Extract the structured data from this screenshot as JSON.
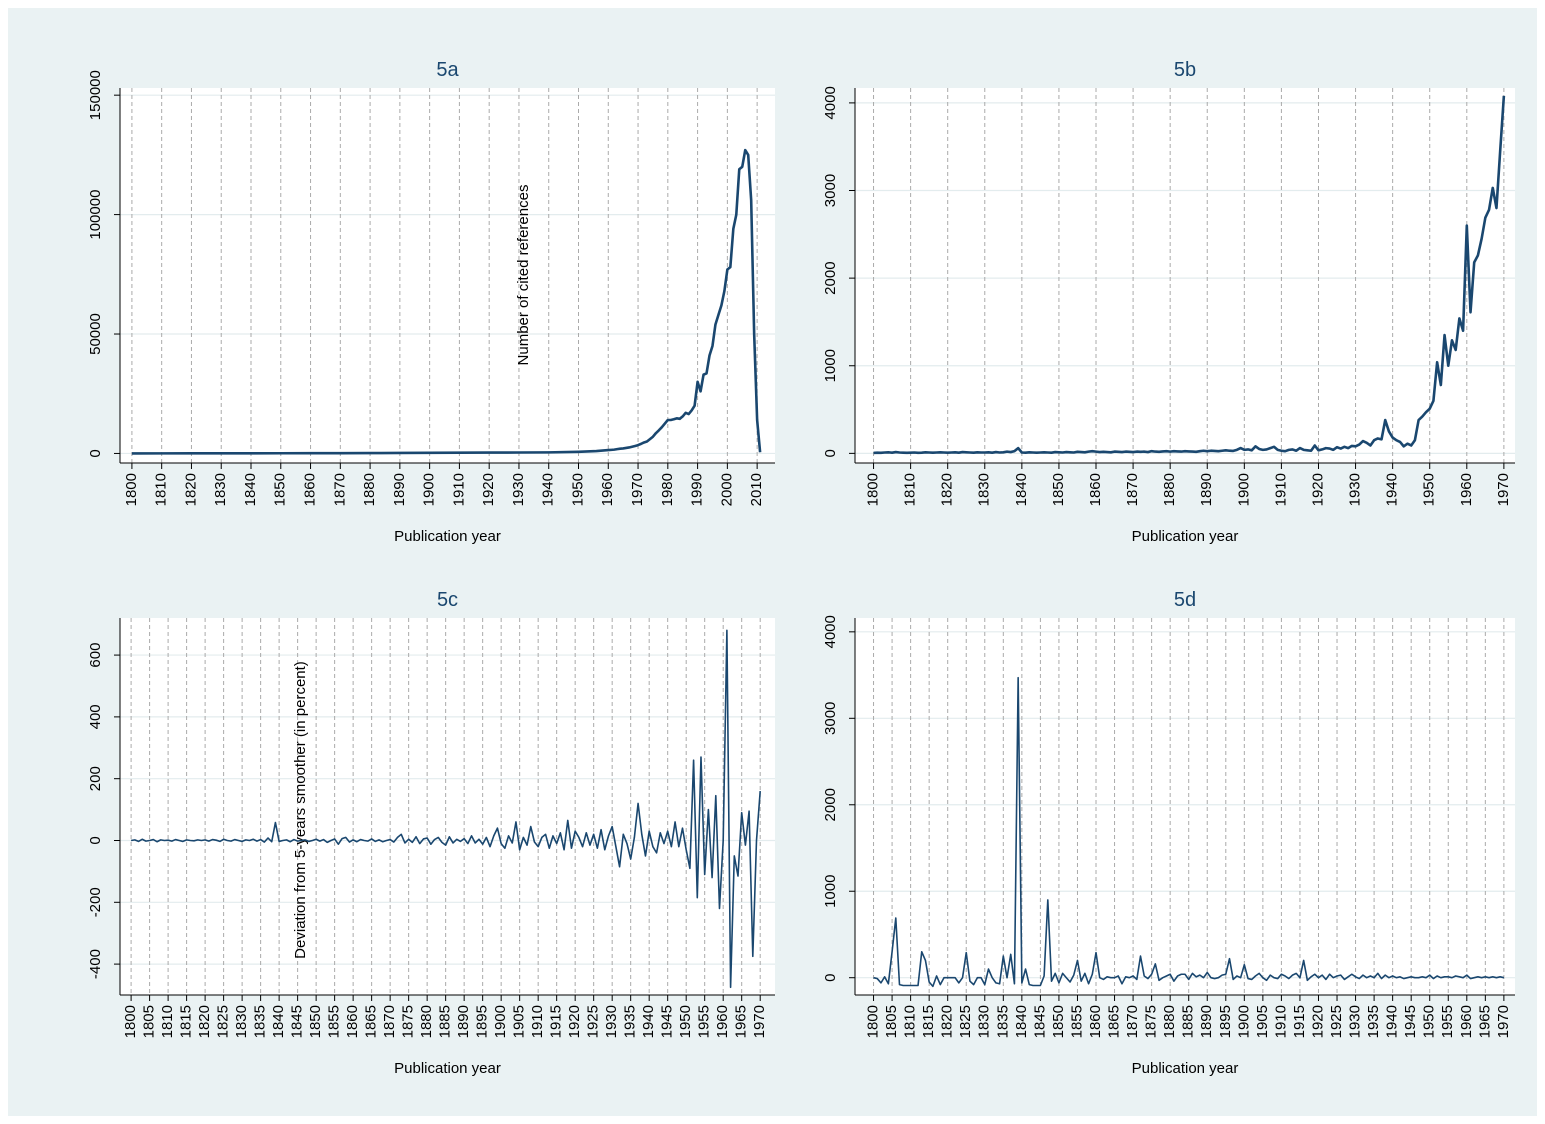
{
  "chart_data": [
    {
      "type": "line",
      "title": "5a",
      "x_label": "Publication year",
      "y_label": "Number of cited references",
      "x": [
        1800,
        1810,
        1820,
        1830,
        1840,
        1850,
        1860,
        1870,
        1880,
        1890,
        1900,
        1910,
        1920,
        1930,
        1940,
        1950,
        1951,
        1952,
        1953,
        1954,
        1955,
        1956,
        1957,
        1958,
        1959,
        1960,
        1961,
        1962,
        1963,
        1964,
        1965,
        1966,
        1967,
        1968,
        1969,
        1970,
        1971,
        1972,
        1973,
        1974,
        1975,
        1976,
        1977,
        1978,
        1979,
        1980,
        1981,
        1982,
        1983,
        1984,
        1985,
        1986,
        1987,
        1988,
        1989,
        1990,
        1991,
        1992,
        1993,
        1994,
        1995,
        1996,
        1997,
        1998,
        1999,
        2000,
        2001,
        2002,
        2003,
        2004,
        2005,
        2006,
        2007,
        2008,
        2009,
        2010,
        2011
      ],
      "values": [
        20,
        30,
        40,
        50,
        60,
        80,
        100,
        120,
        150,
        200,
        250,
        300,
        350,
        400,
        450,
        700,
        750,
        800,
        850,
        900,
        950,
        1000,
        1100,
        1200,
        1300,
        1400,
        1500,
        1600,
        1800,
        2000,
        2100,
        2300,
        2500,
        2800,
        3100,
        3500,
        4000,
        4600,
        5000,
        6000,
        7000,
        8500,
        9700,
        11000,
        12500,
        14000,
        14000,
        14300,
        14700,
        14500,
        15500,
        17000,
        16500,
        18000,
        20000,
        30000,
        26000,
        33000,
        33500,
        41000,
        45000,
        54000,
        58000,
        62000,
        68000,
        77000,
        78000,
        94000,
        100000,
        119000,
        120000,
        127000,
        125000,
        106000,
        50000,
        14000,
        500
      ],
      "color": "#1a476f",
      "xlim": [
        1796,
        2016
      ],
      "ylim": [
        -4000,
        153000
      ],
      "xticks": [
        1800,
        1810,
        1820,
        1830,
        1840,
        1850,
        1860,
        1870,
        1880,
        1890,
        1900,
        1910,
        1920,
        1930,
        1940,
        1950,
        1960,
        1970,
        1980,
        1990,
        2000,
        2010
      ],
      "yticks": [
        0,
        50000,
        100000,
        150000
      ],
      "grid": true
    },
    {
      "type": "line",
      "title": "5b",
      "x_label": "Publication year",
      "x": [
        1800,
        1801,
        1802,
        1803,
        1804,
        1805,
        1806,
        1807,
        1808,
        1809,
        1810,
        1811,
        1812,
        1813,
        1814,
        1815,
        1816,
        1817,
        1818,
        1819,
        1820,
        1821,
        1822,
        1823,
        1824,
        1825,
        1826,
        1827,
        1828,
        1829,
        1830,
        1831,
        1832,
        1833,
        1834,
        1835,
        1836,
        1837,
        1838,
        1839,
        1840,
        1841,
        1842,
        1843,
        1844,
        1845,
        1846,
        1847,
        1848,
        1849,
        1850,
        1851,
        1852,
        1853,
        1854,
        1855,
        1856,
        1857,
        1858,
        1859,
        1860,
        1861,
        1862,
        1863,
        1864,
        1865,
        1866,
        1867,
        1868,
        1869,
        1870,
        1871,
        1872,
        1873,
        1874,
        1875,
        1876,
        1877,
        1878,
        1879,
        1880,
        1881,
        1882,
        1883,
        1884,
        1885,
        1886,
        1887,
        1888,
        1889,
        1890,
        1891,
        1892,
        1893,
        1894,
        1895,
        1896,
        1897,
        1898,
        1899,
        1900,
        1901,
        1902,
        1903,
        1904,
        1905,
        1906,
        1907,
        1908,
        1909,
        1910,
        1911,
        1912,
        1913,
        1914,
        1915,
        1916,
        1917,
        1918,
        1919,
        1920,
        1921,
        1922,
        1923,
        1924,
        1925,
        1926,
        1927,
        1928,
        1929,
        1930,
        1931,
        1932,
        1933,
        1934,
        1935,
        1936,
        1937,
        1938,
        1939,
        1940,
        1941,
        1942,
        1943,
        1944,
        1945,
        1946,
        1947,
        1948,
        1949,
        1950,
        1951,
        1952,
        1953,
        1954,
        1955,
        1956,
        1957,
        1958,
        1959,
        1960,
        1961,
        1962,
        1963,
        1964,
        1965,
        1966,
        1967,
        1968,
        1969,
        1970
      ],
      "values": [
        5,
        8,
        6,
        10,
        12,
        8,
        15,
        10,
        8,
        6,
        8,
        10,
        6,
        8,
        12,
        10,
        8,
        10,
        12,
        10,
        8,
        10,
        12,
        8,
        15,
        12,
        10,
        8,
        12,
        10,
        10,
        12,
        8,
        15,
        10,
        12,
        20,
        15,
        25,
        60,
        10,
        8,
        12,
        10,
        8,
        10,
        12,
        10,
        8,
        15,
        12,
        10,
        15,
        12,
        10,
        18,
        15,
        12,
        20,
        25,
        20,
        15,
        18,
        15,
        12,
        20,
        18,
        15,
        20,
        18,
        15,
        20,
        18,
        20,
        15,
        25,
        20,
        18,
        22,
        25,
        20,
        25,
        22,
        20,
        25,
        22,
        20,
        18,
        25,
        30,
        25,
        30,
        28,
        25,
        30,
        35,
        30,
        28,
        40,
        60,
        40,
        45,
        35,
        80,
        50,
        40,
        45,
        60,
        75,
        40,
        30,
        25,
        40,
        45,
        30,
        60,
        40,
        35,
        30,
        90,
        35,
        45,
        60,
        55,
        40,
        70,
        55,
        75,
        60,
        85,
        80,
        100,
        140,
        120,
        90,
        150,
        170,
        160,
        380,
        250,
        180,
        150,
        130,
        80,
        110,
        90,
        150,
        380,
        420,
        470,
        510,
        600,
        1040,
        780,
        1350,
        1000,
        1290,
        1180,
        1540,
        1400,
        2600,
        1610,
        2180,
        2260,
        2450,
        2690,
        2780,
        3030,
        2800,
        3450,
        4080
      ],
      "color": "#1a476f",
      "xlim": [
        1795,
        1973
      ],
      "ylim": [
        -110,
        4170
      ],
      "xticks": [
        1800,
        1810,
        1820,
        1830,
        1840,
        1850,
        1860,
        1870,
        1880,
        1890,
        1900,
        1910,
        1920,
        1930,
        1940,
        1950,
        1960,
        1970
      ],
      "yticks": [
        0,
        1000,
        2000,
        3000,
        4000
      ],
      "grid": true
    },
    {
      "type": "line",
      "title": "5c",
      "x_label": "Publication year",
      "y_label": "Deviation from 5-years smoother (in percent)",
      "x": [
        1800,
        1801,
        1802,
        1803,
        1804,
        1805,
        1806,
        1807,
        1808,
        1809,
        1810,
        1811,
        1812,
        1813,
        1814,
        1815,
        1816,
        1817,
        1818,
        1819,
        1820,
        1821,
        1822,
        1823,
        1824,
        1825,
        1826,
        1827,
        1828,
        1829,
        1830,
        1831,
        1832,
        1833,
        1834,
        1835,
        1836,
        1837,
        1838,
        1839,
        1840,
        1841,
        1842,
        1843,
        1844,
        1845,
        1846,
        1847,
        1848,
        1849,
        1850,
        1851,
        1852,
        1853,
        1854,
        1855,
        1856,
        1857,
        1858,
        1859,
        1860,
        1861,
        1862,
        1863,
        1864,
        1865,
        1866,
        1867,
        1868,
        1869,
        1870,
        1871,
        1872,
        1873,
        1874,
        1875,
        1876,
        1877,
        1878,
        1879,
        1880,
        1881,
        1882,
        1883,
        1884,
        1885,
        1886,
        1887,
        1888,
        1889,
        1890,
        1891,
        1892,
        1893,
        1894,
        1895,
        1896,
        1897,
        1898,
        1899,
        1900,
        1901,
        1902,
        1903,
        1904,
        1905,
        1906,
        1907,
        1908,
        1909,
        1910,
        1911,
        1912,
        1913,
        1914,
        1915,
        1916,
        1917,
        1918,
        1919,
        1920,
        1921,
        1922,
        1923,
        1924,
        1925,
        1926,
        1927,
        1928,
        1929,
        1930,
        1931,
        1932,
        1933,
        1934,
        1935,
        1936,
        1937,
        1938,
        1939,
        1940,
        1941,
        1942,
        1943,
        1944,
        1945,
        1946,
        1947,
        1948,
        1949,
        1950,
        1951,
        1952,
        1953,
        1954,
        1955,
        1956,
        1957,
        1958,
        1959,
        1960,
        1961,
        1962,
        1963,
        1964,
        1965,
        1966,
        1967,
        1968,
        1969,
        1970
      ],
      "values": [
        0,
        2,
        -3,
        4,
        -2,
        0,
        3,
        -4,
        2,
        0,
        1,
        -2,
        3,
        0,
        -3,
        2,
        0,
        -1,
        2,
        0,
        2,
        -2,
        3,
        1,
        -3,
        4,
        0,
        -2,
        3,
        0,
        -3,
        2,
        0,
        4,
        -2,
        3,
        -5,
        8,
        -4,
        58,
        -3,
        0,
        2,
        -4,
        3,
        -2,
        0,
        2,
        -3,
        0,
        4,
        -2,
        3,
        -6,
        0,
        5,
        -12,
        6,
        10,
        -5,
        2,
        -4,
        3,
        0,
        -2,
        5,
        -3,
        2,
        -4,
        0,
        3,
        -5,
        10,
        20,
        -8,
        4,
        -6,
        12,
        -10,
        5,
        8,
        -12,
        3,
        10,
        -6,
        -15,
        12,
        -8,
        4,
        -3,
        6,
        -10,
        15,
        -8,
        4,
        -12,
        10,
        -20,
        15,
        40,
        -10,
        -25,
        15,
        -8,
        60,
        -30,
        10,
        -15,
        45,
        -5,
        -20,
        10,
        20,
        -25,
        15,
        -10,
        25,
        -30,
        65,
        -25,
        30,
        10,
        -20,
        25,
        -15,
        20,
        -25,
        35,
        -30,
        15,
        45,
        -20,
        -85,
        20,
        -10,
        -60,
        10,
        120,
        20,
        -50,
        30,
        -20,
        -40,
        25,
        -10,
        30,
        -20,
        60,
        -20,
        40,
        -30,
        -90,
        260,
        -185,
        270,
        -110,
        100,
        -120,
        145,
        -220,
        0,
        680,
        -475,
        -50,
        -115,
        90,
        -15,
        95,
        -375,
        0,
        160
      ],
      "color": "#1a476f",
      "xlim": [
        1797,
        1974
      ],
      "ylim": [
        -500,
        720
      ],
      "xticks": [
        1800,
        1805,
        1810,
        1815,
        1820,
        1825,
        1830,
        1835,
        1840,
        1845,
        1850,
        1855,
        1860,
        1865,
        1870,
        1875,
        1880,
        1885,
        1890,
        1895,
        1900,
        1905,
        1910,
        1915,
        1920,
        1925,
        1930,
        1935,
        1940,
        1945,
        1950,
        1955,
        1960,
        1965,
        1970
      ],
      "yticks": [
        -400,
        -200,
        0,
        200,
        400,
        600
      ],
      "grid": true
    },
    {
      "type": "line",
      "title": "5d",
      "x_label": "Publication year",
      "x": [
        1800,
        1801,
        1802,
        1803,
        1804,
        1805,
        1806,
        1807,
        1808,
        1809,
        1810,
        1811,
        1812,
        1813,
        1814,
        1815,
        1816,
        1817,
        1818,
        1819,
        1820,
        1821,
        1822,
        1823,
        1824,
        1825,
        1826,
        1827,
        1828,
        1829,
        1830,
        1831,
        1832,
        1833,
        1834,
        1835,
        1836,
        1837,
        1838,
        1839,
        1840,
        1841,
        1842,
        1843,
        1844,
        1845,
        1846,
        1847,
        1848,
        1849,
        1850,
        1851,
        1852,
        1853,
        1854,
        1855,
        1856,
        1857,
        1858,
        1859,
        1860,
        1861,
        1862,
        1863,
        1864,
        1865,
        1866,
        1867,
        1868,
        1869,
        1870,
        1871,
        1872,
        1873,
        1874,
        1875,
        1876,
        1877,
        1878,
        1879,
        1880,
        1881,
        1882,
        1883,
        1884,
        1885,
        1886,
        1887,
        1888,
        1889,
        1890,
        1891,
        1892,
        1893,
        1894,
        1895,
        1896,
        1897,
        1898,
        1899,
        1900,
        1901,
        1902,
        1903,
        1904,
        1905,
        1906,
        1907,
        1908,
        1909,
        1910,
        1911,
        1912,
        1913,
        1914,
        1915,
        1916,
        1917,
        1918,
        1919,
        1920,
        1921,
        1922,
        1923,
        1924,
        1925,
        1926,
        1927,
        1928,
        1929,
        1930,
        1931,
        1932,
        1933,
        1934,
        1935,
        1936,
        1937,
        1938,
        1939,
        1940,
        1941,
        1942,
        1943,
        1944,
        1945,
        1946,
        1947,
        1948,
        1949,
        1950,
        1951,
        1952,
        1953,
        1954,
        1955,
        1956,
        1957,
        1958,
        1959,
        1960,
        1961,
        1962,
        1963,
        1964,
        1965,
        1966,
        1967,
        1968,
        1969,
        1970
      ],
      "values": [
        0,
        -10,
        -60,
        10,
        -70,
        300,
        690,
        -80,
        -90,
        -90,
        -90,
        -90,
        -90,
        300,
        200,
        -50,
        -100,
        20,
        -80,
        0,
        0,
        0,
        0,
        -60,
        0,
        290,
        -40,
        -80,
        0,
        0,
        -80,
        100,
        0,
        -60,
        -70,
        250,
        0,
        270,
        -70,
        3470,
        -60,
        100,
        -80,
        -90,
        -90,
        -90,
        20,
        900,
        -40,
        50,
        -60,
        50,
        0,
        -50,
        30,
        200,
        -40,
        50,
        -70,
        40,
        290,
        0,
        -20,
        10,
        0,
        0,
        20,
        -70,
        10,
        0,
        20,
        -20,
        250,
        20,
        -10,
        40,
        160,
        -30,
        0,
        20,
        40,
        -40,
        20,
        40,
        40,
        -20,
        50,
        10,
        30,
        0,
        60,
        0,
        -10,
        0,
        30,
        40,
        220,
        -20,
        20,
        0,
        150,
        -10,
        -20,
        20,
        50,
        0,
        -30,
        30,
        0,
        -10,
        40,
        20,
        -10,
        30,
        50,
        0,
        200,
        -30,
        10,
        40,
        0,
        30,
        -20,
        40,
        0,
        20,
        30,
        -20,
        10,
        40,
        10,
        -10,
        30,
        0,
        20,
        0,
        50,
        -10,
        30,
        0,
        20,
        0,
        10,
        -10,
        0,
        10,
        0,
        0,
        10,
        0,
        30,
        -10,
        20,
        0,
        10,
        10,
        0,
        20,
        10,
        0,
        30,
        -10,
        0,
        10,
        0,
        10,
        0,
        10,
        0,
        10,
        0
      ],
      "color": "#1a476f",
      "xlim": [
        1795,
        1973
      ],
      "ylim": [
        -200,
        4160
      ],
      "xticks": [
        1800,
        1805,
        1810,
        1815,
        1820,
        1825,
        1830,
        1835,
        1840,
        1845,
        1850,
        1855,
        1860,
        1865,
        1870,
        1875,
        1880,
        1885,
        1890,
        1895,
        1900,
        1905,
        1910,
        1915,
        1920,
        1925,
        1930,
        1935,
        1940,
        1945,
        1950,
        1955,
        1960,
        1965,
        1970
      ],
      "yticks": [
        0,
        1000,
        2000,
        3000,
        4000
      ],
      "grid": true
    }
  ]
}
